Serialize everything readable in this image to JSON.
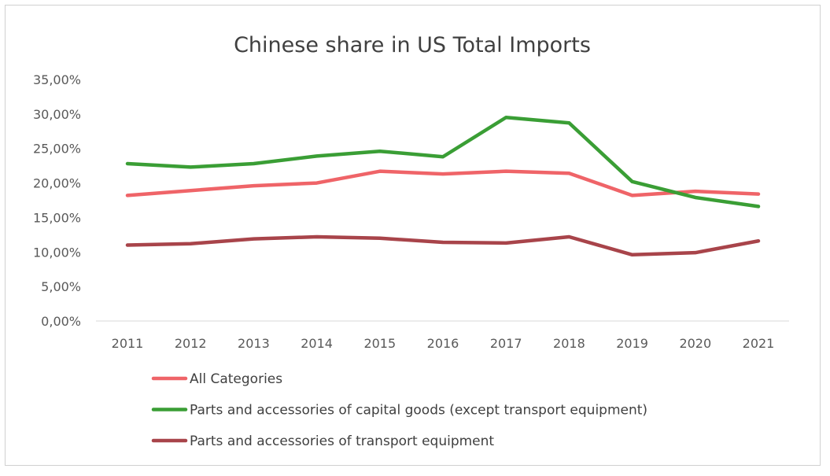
{
  "chart_data": {
    "type": "line",
    "title": "Chinese share in US Total Imports",
    "xlabel": "",
    "ylabel": "",
    "categories": [
      "2011",
      "2012",
      "2013",
      "2014",
      "2015",
      "2016",
      "2017",
      "2018",
      "2019",
      "2020",
      "2021"
    ],
    "ylim": [
      0,
      35
    ],
    "y_ticks": [
      "0,00%",
      "5,00%",
      "10,00%",
      "15,00%",
      "20,00%",
      "25,00%",
      "30,00%",
      "35,00%"
    ],
    "grid": false,
    "legend_position": "bottom-left",
    "series": [
      {
        "name": "All Categories",
        "color": "#EF6468",
        "values": [
          18.2,
          18.9,
          19.6,
          20.0,
          21.7,
          21.3,
          21.7,
          21.4,
          18.2,
          18.8,
          18.4
        ]
      },
      {
        "name": "Parts and accessories of capital goods (except transport equipment)",
        "color": "#3A9E35",
        "values": [
          22.8,
          22.3,
          22.8,
          23.9,
          24.6,
          23.8,
          29.5,
          28.7,
          20.2,
          17.9,
          16.6
        ]
      },
      {
        "name": "Parts and accessories of transport equipment",
        "color": "#A8444A",
        "values": [
          11.0,
          11.2,
          11.9,
          12.2,
          12.0,
          11.4,
          11.3,
          12.2,
          9.6,
          9.9,
          11.6
        ]
      }
    ]
  }
}
